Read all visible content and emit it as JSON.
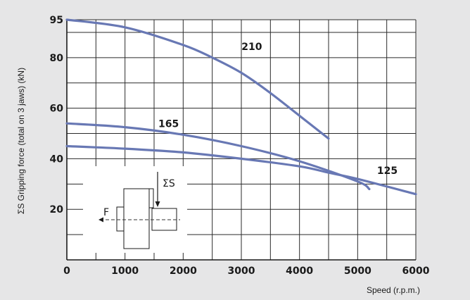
{
  "chart_data": {
    "type": "line",
    "xlabel": "Speed (r.p.m.)",
    "ylabel": "ΣS Gripping force (total on 3 jaws) (kN)",
    "xlim": [
      0,
      6000
    ],
    "ylim": [
      0,
      95
    ],
    "x_ticks": [
      "0",
      "1000",
      "2000",
      "3000",
      "4000",
      "5000",
      "6000"
    ],
    "y_ticks": [
      "20",
      "40",
      "60",
      "80",
      "95"
    ],
    "grid": true,
    "line_color": "#6878b4",
    "series": [
      {
        "name": "210",
        "x": [
          0,
          1000,
          2000,
          2500,
          3000,
          3500,
          4000,
          4500
        ],
        "y": [
          95,
          92,
          85,
          80,
          74,
          66,
          57,
          48
        ]
      },
      {
        "name": "165",
        "x": [
          0,
          1000,
          2000,
          3000,
          4000,
          5000,
          5200
        ],
        "y": [
          54,
          52.5,
          49.5,
          45,
          39,
          31,
          28
        ]
      },
      {
        "name": "125",
        "x": [
          0,
          1000,
          2000,
          3000,
          4000,
          4500,
          5000,
          6000
        ],
        "y": [
          45,
          44,
          42.5,
          40,
          37,
          34.5,
          32,
          26
        ]
      }
    ],
    "series_labels": [
      "210",
      "165",
      "125"
    ]
  },
  "diagram": {
    "force_label": "F",
    "sum_label": "ΣS"
  }
}
